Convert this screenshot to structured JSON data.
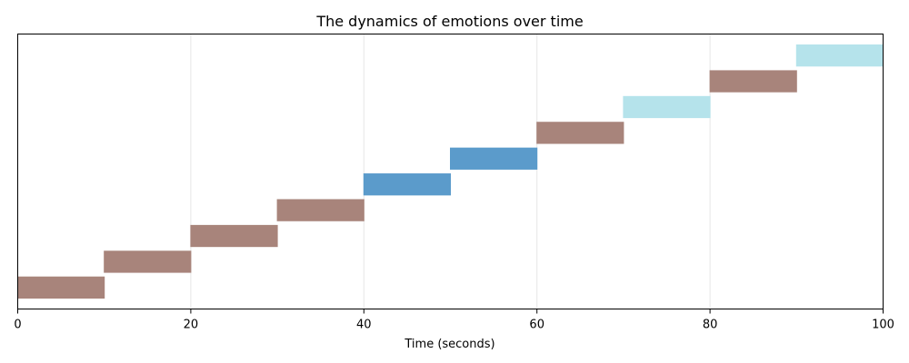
{
  "chart_data": {
    "type": "bar",
    "orientation": "horizontal-gantt",
    "title": "The dynamics of emotions over time",
    "xlabel": "Time (seconds)",
    "ylabel": "",
    "xlim": [
      0,
      100
    ],
    "xticks": [
      0,
      20,
      40,
      60,
      80,
      100
    ],
    "grid": "x",
    "segments": [
      {
        "start": 0,
        "end": 10,
        "color": "#a8847b"
      },
      {
        "start": 10,
        "end": 20,
        "color": "#a8847b"
      },
      {
        "start": 20,
        "end": 30,
        "color": "#a8847b"
      },
      {
        "start": 30,
        "end": 40,
        "color": "#a8847b"
      },
      {
        "start": 40,
        "end": 50,
        "color": "#5b9bcb"
      },
      {
        "start": 50,
        "end": 60,
        "color": "#5b9bcb"
      },
      {
        "start": 60,
        "end": 70,
        "color": "#a8847b"
      },
      {
        "start": 70,
        "end": 80,
        "color": "#b5e3eb"
      },
      {
        "start": 80,
        "end": 90,
        "color": "#a8847b"
      },
      {
        "start": 90,
        "end": 100,
        "color": "#b5e3eb"
      }
    ]
  }
}
